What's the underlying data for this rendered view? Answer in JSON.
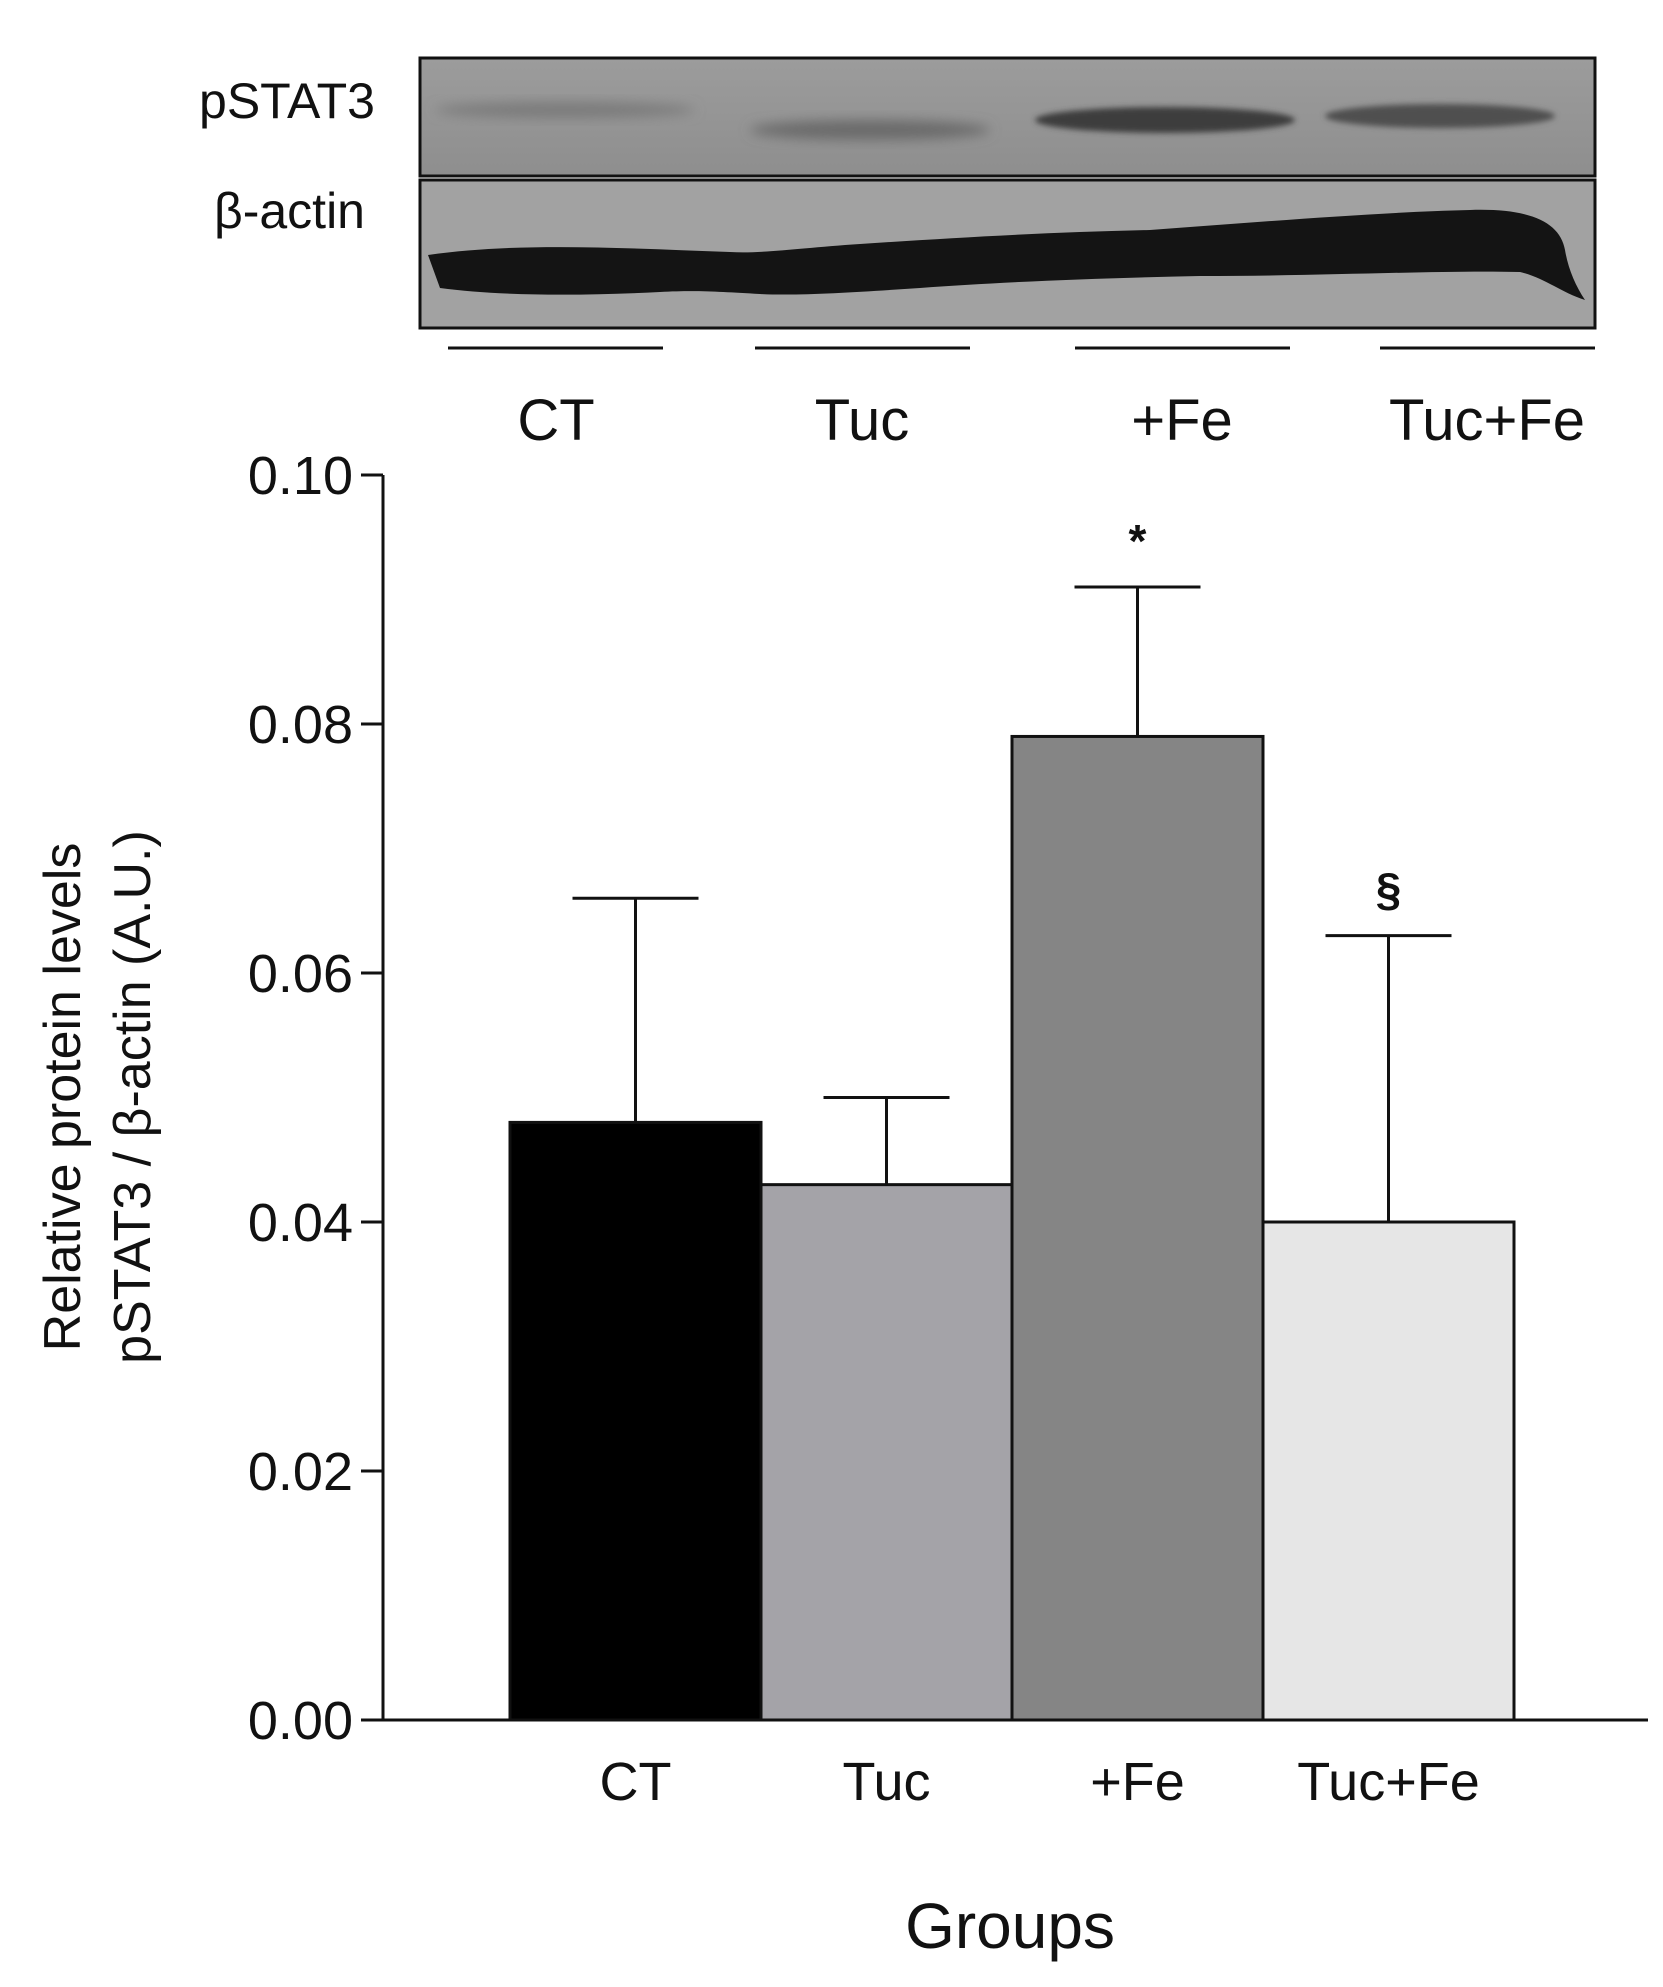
{
  "blot": {
    "row_labels": [
      "pSTAT3",
      "β-actin"
    ],
    "lane_labels": [
      "CT",
      "Tuc",
      "+Fe",
      "Tuc+Fe"
    ]
  },
  "chart_data": {
    "type": "bar",
    "title": "",
    "xlabel": "Groups",
    "ylabel_lines": [
      "Relative protein levels",
      "pSTAT3 / β-actin (A.U.)"
    ],
    "categories": [
      "CT",
      "Tuc",
      "+Fe",
      "Tuc+Fe"
    ],
    "values": [
      0.048,
      0.043,
      0.079,
      0.04
    ],
    "error_upper": [
      0.066,
      0.05,
      0.091,
      0.063
    ],
    "annotations": [
      "",
      "",
      "*",
      "§"
    ],
    "colors": [
      "#000000",
      "#a4a3a8",
      "#858585",
      "#e6e6e6"
    ],
    "ylim": [
      0,
      0.1
    ],
    "yticks": [
      "0.00",
      "0.02",
      "0.04",
      "0.06",
      "0.08",
      "0.10"
    ],
    "ytick_values": [
      0,
      0.02,
      0.04,
      0.06,
      0.08,
      0.1
    ],
    "grid": false,
    "legend": "none"
  }
}
